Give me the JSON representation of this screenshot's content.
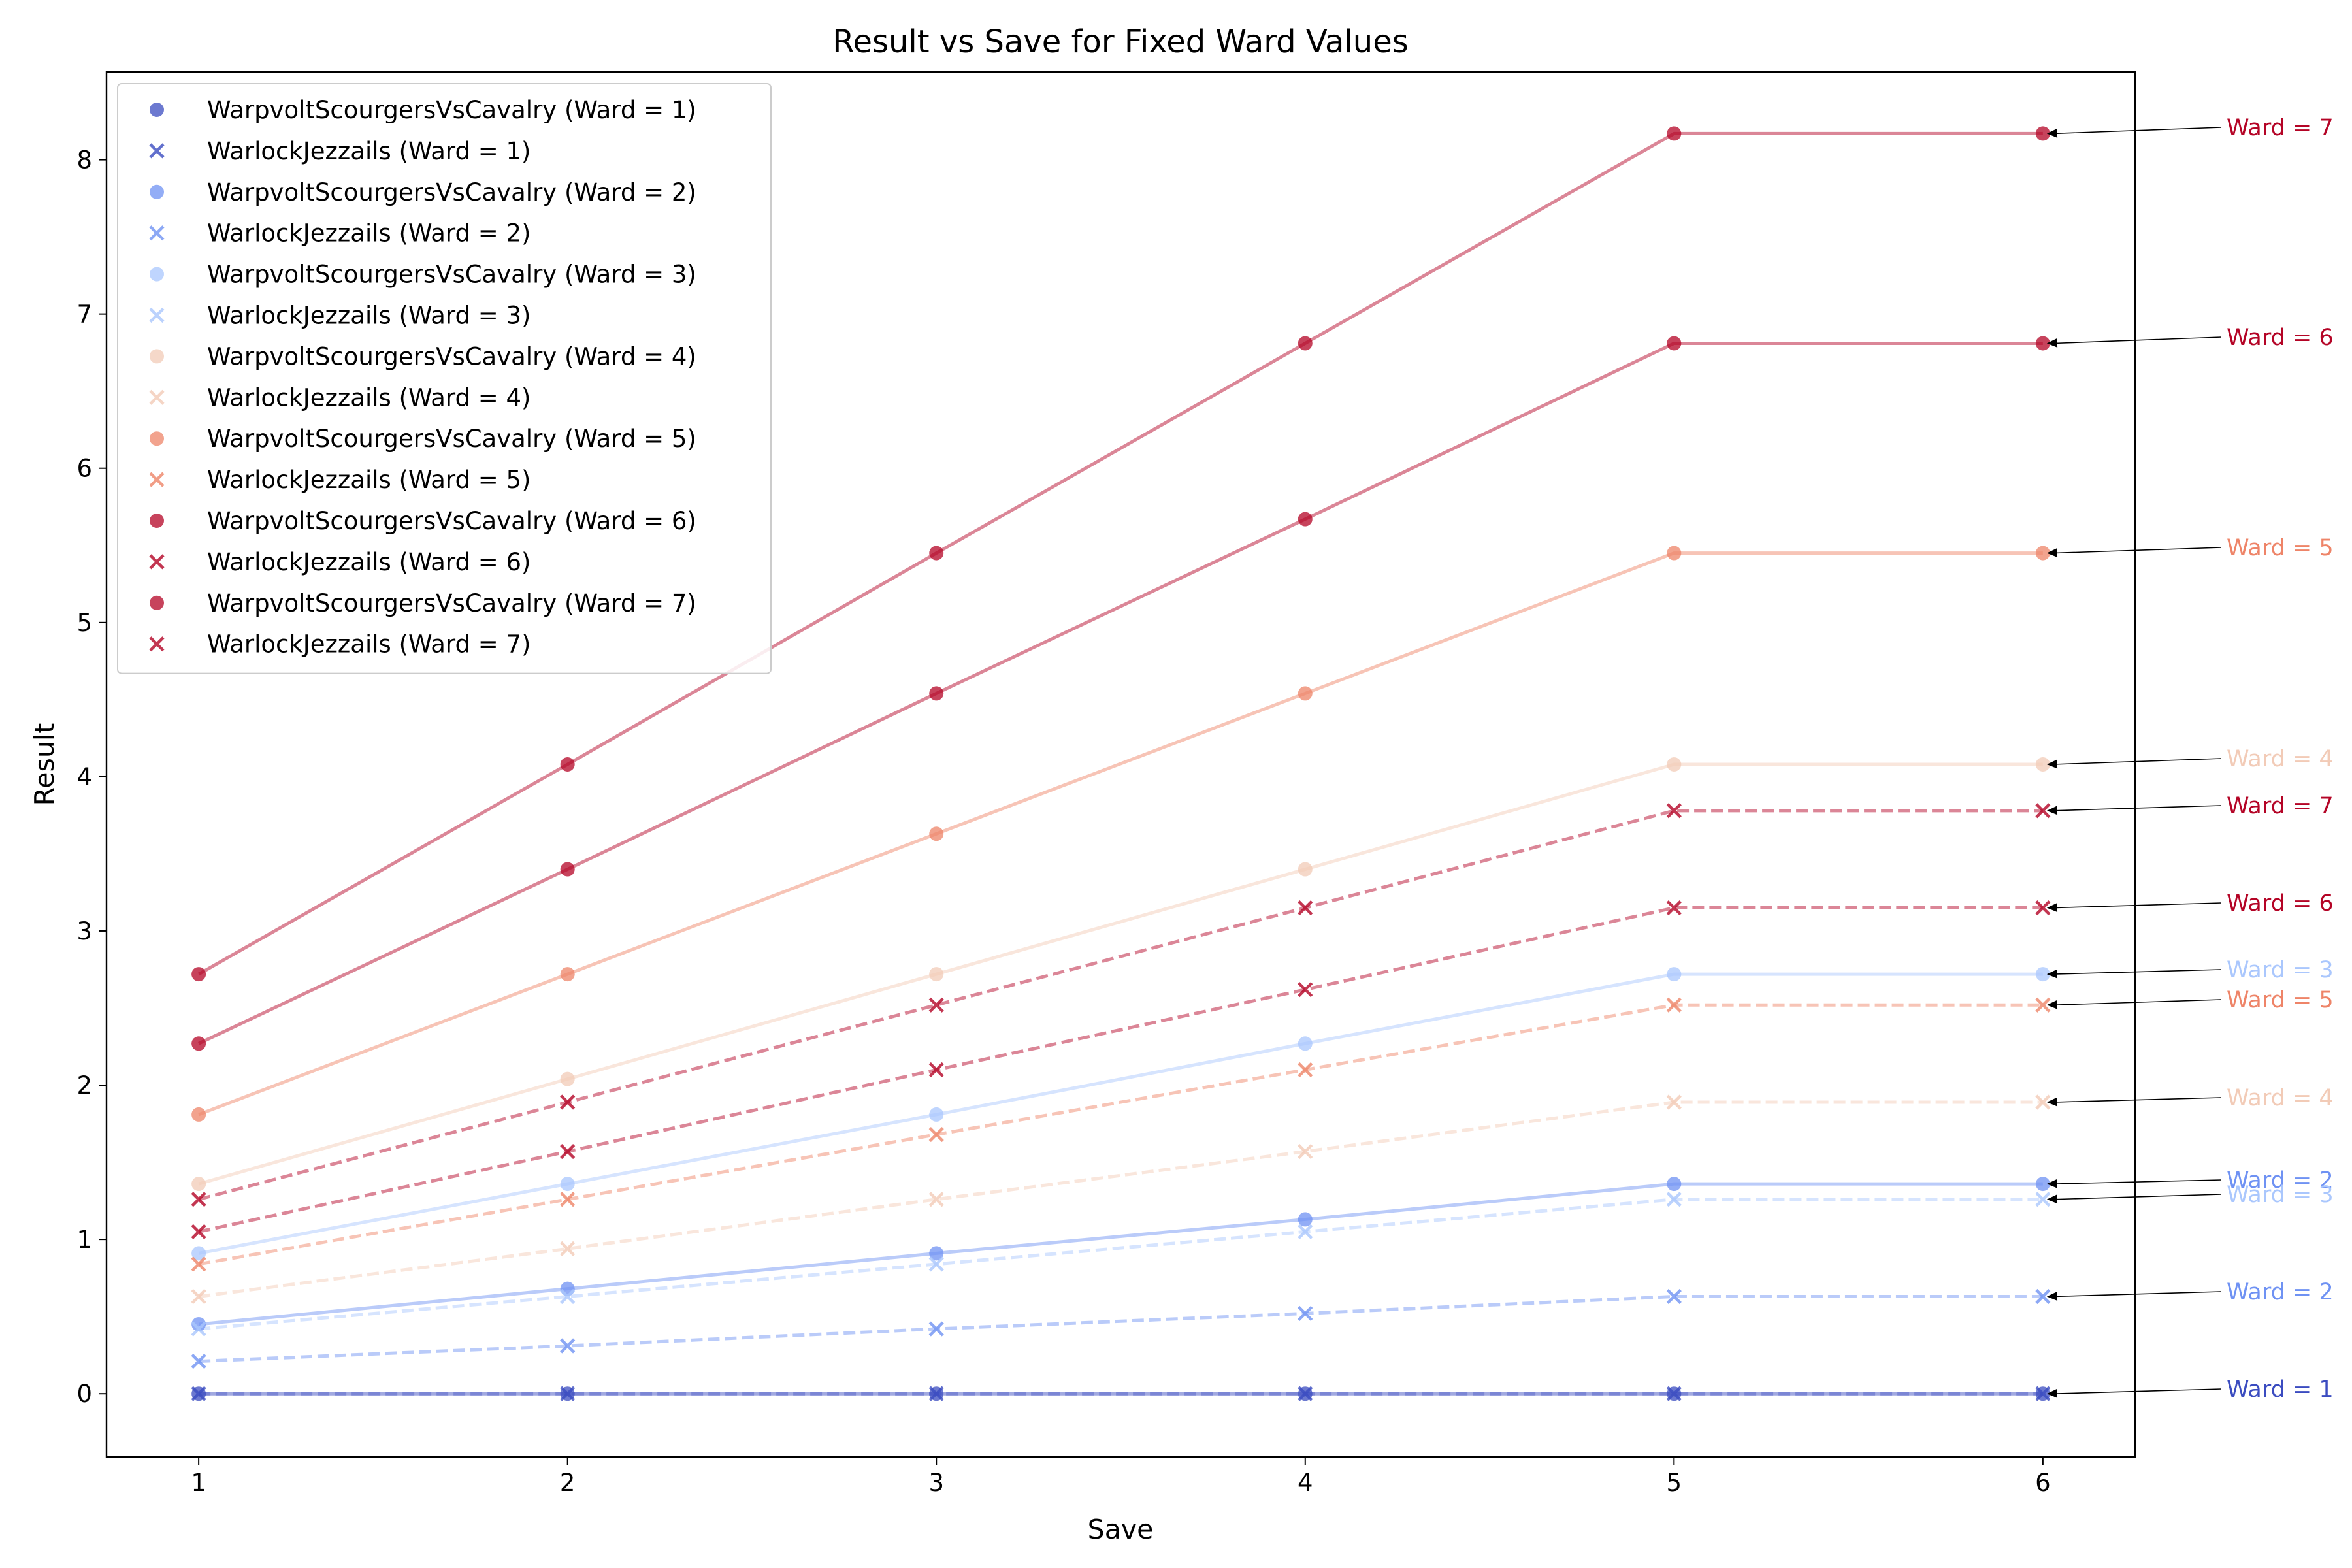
{
  "chart_data": {
    "type": "line",
    "title": "Result vs Save for Fixed Ward Values",
    "xlabel": "Save",
    "ylabel": "Result",
    "xlim": [
      0.75,
      6.25
    ],
    "ylim": [
      -0.41,
      8.57
    ],
    "x_ticks": [
      1,
      2,
      3,
      4,
      5,
      6
    ],
    "y_ticks": [
      0,
      1,
      2,
      3,
      4,
      5,
      6,
      7,
      8
    ],
    "grid": false,
    "legend_position": "upper-left",
    "x": [
      1,
      2,
      3,
      4,
      5,
      6
    ],
    "series": [
      {
        "name": "WarpvoltScourgersVsCavalry (Ward = 1)",
        "ward": 1,
        "marker": "circle",
        "linestyle": "solid",
        "color": "#3b4cc0",
        "values": [
          0,
          0,
          0,
          0,
          0,
          0
        ]
      },
      {
        "name": "WarlockJezzails (Ward = 1)",
        "ward": 1,
        "marker": "x",
        "linestyle": "dashed",
        "color": "#3b4cc0",
        "values": [
          0,
          0,
          0,
          0,
          0,
          0
        ]
      },
      {
        "name": "WarpvoltScourgersVsCavalry (Ward = 2)",
        "ward": 2,
        "marker": "circle",
        "linestyle": "solid",
        "color": "#6f92f3",
        "values": [
          0.45,
          0.68,
          0.91,
          1.13,
          1.36,
          1.36
        ]
      },
      {
        "name": "WarlockJezzails (Ward = 2)",
        "ward": 2,
        "marker": "x",
        "linestyle": "dashed",
        "color": "#6f92f3",
        "values": [
          0.21,
          0.31,
          0.42,
          0.52,
          0.63,
          0.63
        ]
      },
      {
        "name": "WarpvoltScourgersVsCavalry (Ward = 3)",
        "ward": 3,
        "marker": "circle",
        "linestyle": "solid",
        "color": "#aac7fd",
        "values": [
          0.91,
          1.36,
          1.81,
          2.27,
          2.72,
          2.72
        ]
      },
      {
        "name": "WarlockJezzails (Ward = 3)",
        "ward": 3,
        "marker": "x",
        "linestyle": "dashed",
        "color": "#aac7fd",
        "values": [
          0.42,
          0.63,
          0.84,
          1.05,
          1.26,
          1.26
        ]
      },
      {
        "name": "WarpvoltScourgersVsCavalry (Ward = 4)",
        "ward": 4,
        "marker": "circle",
        "linestyle": "solid",
        "color": "#f2cbb7",
        "values": [
          1.36,
          2.04,
          2.72,
          3.4,
          4.08,
          4.08
        ]
      },
      {
        "name": "WarlockJezzails (Ward = 4)",
        "ward": 4,
        "marker": "x",
        "linestyle": "dashed",
        "color": "#f2cbb7",
        "values": [
          0.63,
          0.94,
          1.26,
          1.57,
          1.89,
          1.89
        ]
      },
      {
        "name": "WarpvoltScourgersVsCavalry (Ward = 5)",
        "ward": 5,
        "marker": "circle",
        "linestyle": "solid",
        "color": "#ee8468",
        "values": [
          1.81,
          2.72,
          3.63,
          4.54,
          5.45,
          5.45
        ]
      },
      {
        "name": "WarlockJezzails (Ward = 5)",
        "ward": 5,
        "marker": "x",
        "linestyle": "dashed",
        "color": "#ee8468",
        "values": [
          0.84,
          1.26,
          1.68,
          2.1,
          2.52,
          2.52
        ]
      },
      {
        "name": "WarpvoltScourgersVsCavalry (Ward = 6)",
        "ward": 6,
        "marker": "circle",
        "linestyle": "solid",
        "color": "#b40426",
        "values": [
          2.27,
          3.4,
          4.54,
          5.67,
          6.81,
          6.81
        ]
      },
      {
        "name": "WarlockJezzails (Ward = 6)",
        "ward": 6,
        "marker": "x",
        "linestyle": "dashed",
        "color": "#b40426",
        "values": [
          1.05,
          1.57,
          2.1,
          2.62,
          3.15,
          3.15
        ]
      },
      {
        "name": "WarpvoltScourgersVsCavalry (Ward = 7)",
        "ward": 7,
        "marker": "circle",
        "linestyle": "solid",
        "color": "#b40426",
        "values": [
          2.72,
          4.08,
          5.45,
          6.81,
          8.17,
          8.17
        ]
      },
      {
        "name": "WarlockJezzails (Ward = 7)",
        "ward": 7,
        "marker": "x",
        "linestyle": "dashed",
        "color": "#b40426",
        "values": [
          1.26,
          1.89,
          2.52,
          3.15,
          3.78,
          3.78
        ]
      }
    ],
    "annotations": [
      {
        "text": "Ward = 7",
        "x": 6,
        "y": 8.17,
        "color": "#b40426"
      },
      {
        "text": "Ward = 6",
        "x": 6,
        "y": 6.81,
        "color": "#b40426"
      },
      {
        "text": "Ward = 5",
        "x": 6,
        "y": 5.45,
        "color": "#ee8468"
      },
      {
        "text": "Ward = 4",
        "x": 6,
        "y": 4.08,
        "color": "#f2cbb7"
      },
      {
        "text": "Ward = 7",
        "x": 6,
        "y": 3.78,
        "color": "#b40426"
      },
      {
        "text": "Ward = 6",
        "x": 6,
        "y": 3.15,
        "color": "#b40426"
      },
      {
        "text": "Ward = 3",
        "x": 6,
        "y": 2.72,
        "color": "#aac7fd"
      },
      {
        "text": "Ward = 5",
        "x": 6,
        "y": 2.52,
        "color": "#ee8468"
      },
      {
        "text": "Ward = 4",
        "x": 6,
        "y": 1.89,
        "color": "#f2cbb7"
      },
      {
        "text": "Ward = 2",
        "x": 6,
        "y": 1.36,
        "color": "#6f92f3"
      },
      {
        "text": "Ward = 3",
        "x": 6,
        "y": 1.26,
        "color": "#aac7fd"
      },
      {
        "text": "Ward = 2",
        "x": 6,
        "y": 0.63,
        "color": "#6f92f3"
      },
      {
        "text": "Ward = 1",
        "x": 6,
        "y": 0,
        "color": "#3b4cc0"
      }
    ]
  }
}
